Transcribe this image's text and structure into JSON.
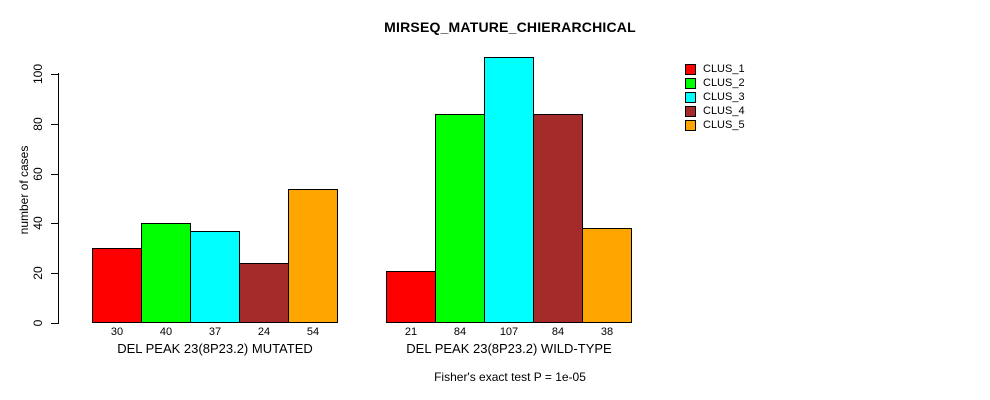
{
  "chart_data": {
    "type": "bar",
    "title": "MIRSEQ_MATURE_CHIERARCHICAL",
    "ylabel": "number of cases",
    "xlabel": "",
    "footnote": "Fisher's exact test P = 1e-05",
    "yticks": [
      0,
      20,
      40,
      60,
      80,
      100
    ],
    "ylim": [
      0,
      107
    ],
    "grid": false,
    "legend_position": "top-right-outside",
    "bar_value_labels": true,
    "categories": [
      "DEL PEAK 23(8P23.2) MUTATED",
      "DEL PEAK 23(8P23.2) WILD-TYPE"
    ],
    "series": [
      {
        "name": "CLUS_1",
        "color": "#FF0000",
        "values": [
          30,
          21
        ]
      },
      {
        "name": "CLUS_2",
        "color": "#00FF00",
        "values": [
          40,
          84
        ]
      },
      {
        "name": "CLUS_3",
        "color": "#00FFFF",
        "values": [
          37,
          107
        ]
      },
      {
        "name": "CLUS_4",
        "color": "#A52A2A",
        "values": [
          24,
          84
        ]
      },
      {
        "name": "CLUS_5",
        "color": "#FFA500",
        "values": [
          54,
          38
        ]
      }
    ],
    "colors": {
      "background": "#FFFFFF",
      "axis": "#000000",
      "text": "#000000",
      "bar_border": "#000000"
    }
  }
}
